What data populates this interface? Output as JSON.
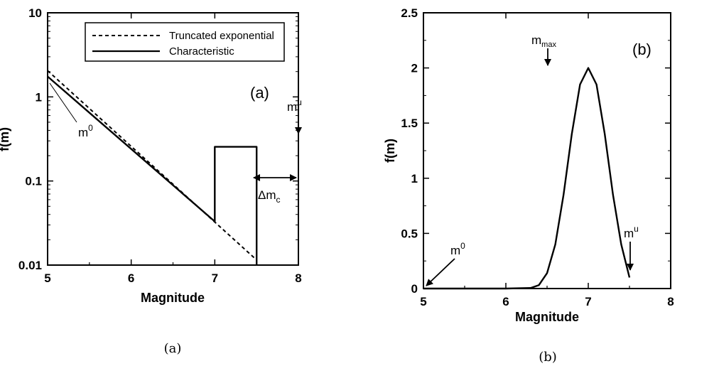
{
  "chart_data": [
    {
      "type": "line",
      "panel_label": "(a)",
      "caption": "(a)",
      "xlabel": "Magnitude",
      "ylabel": "f(m)",
      "xlim": [
        5,
        8
      ],
      "ylim": [
        0.01,
        10
      ],
      "yscale": "log",
      "x_ticks": [
        "5",
        "6",
        "7",
        "8"
      ],
      "y_ticks": [
        "0.01",
        "0.1",
        "1",
        "10"
      ],
      "legend_position": "top",
      "series": [
        {
          "name": "Truncated exponential",
          "style": "dashed",
          "x": [
            5.0,
            7.5
          ],
          "y": [
            2.05,
            0.0115
          ]
        },
        {
          "name": "Characteristic",
          "style": "solid",
          "x": [
            5.0,
            7.0,
            7.0,
            7.5,
            7.5
          ],
          "y": [
            1.75,
            0.033,
            0.255,
            0.255,
            0.01
          ]
        }
      ],
      "annotations": {
        "m0": {
          "base": "m",
          "sup": "0",
          "x": 5.0,
          "y": 1.75
        },
        "mu": {
          "base": "m",
          "sup": "u",
          "x": 7.5,
          "y": 0.3
        },
        "delta_mc": {
          "base": "Δm",
          "sub": "c",
          "x_from": 7.0,
          "x_to": 7.5,
          "y": 0.17
        }
      }
    },
    {
      "type": "line",
      "panel_label": "(b)",
      "caption": "(b)",
      "xlabel": "Magnitude",
      "ylabel": "f(m)",
      "xlim": [
        5,
        8
      ],
      "ylim": [
        0,
        2.5
      ],
      "x_ticks": [
        "5",
        "6",
        "7",
        "8"
      ],
      "y_ticks": [
        "0",
        "0.5",
        "1",
        "1.5",
        "2",
        "2.5"
      ],
      "series": [
        {
          "style": "solid",
          "x": [
            5.0,
            6.0,
            6.3,
            6.4,
            6.5,
            6.6,
            6.7,
            6.8,
            6.9,
            7.0,
            7.1,
            7.2,
            7.3,
            7.4,
            7.5
          ],
          "y": [
            0.0,
            0.0,
            0.005,
            0.03,
            0.14,
            0.4,
            0.85,
            1.4,
            1.85,
            2.0,
            1.85,
            1.4,
            0.85,
            0.4,
            0.1
          ]
        }
      ],
      "annotations": {
        "mmax": {
          "base": "m",
          "sub": "max",
          "x": 7.0,
          "y": 2.0
        },
        "m0": {
          "base": "m",
          "sup": "0",
          "x": 5.0,
          "y": 0.0
        },
        "mu": {
          "base": "m",
          "sup": "u",
          "x": 7.5,
          "y": 0.1
        }
      }
    }
  ]
}
